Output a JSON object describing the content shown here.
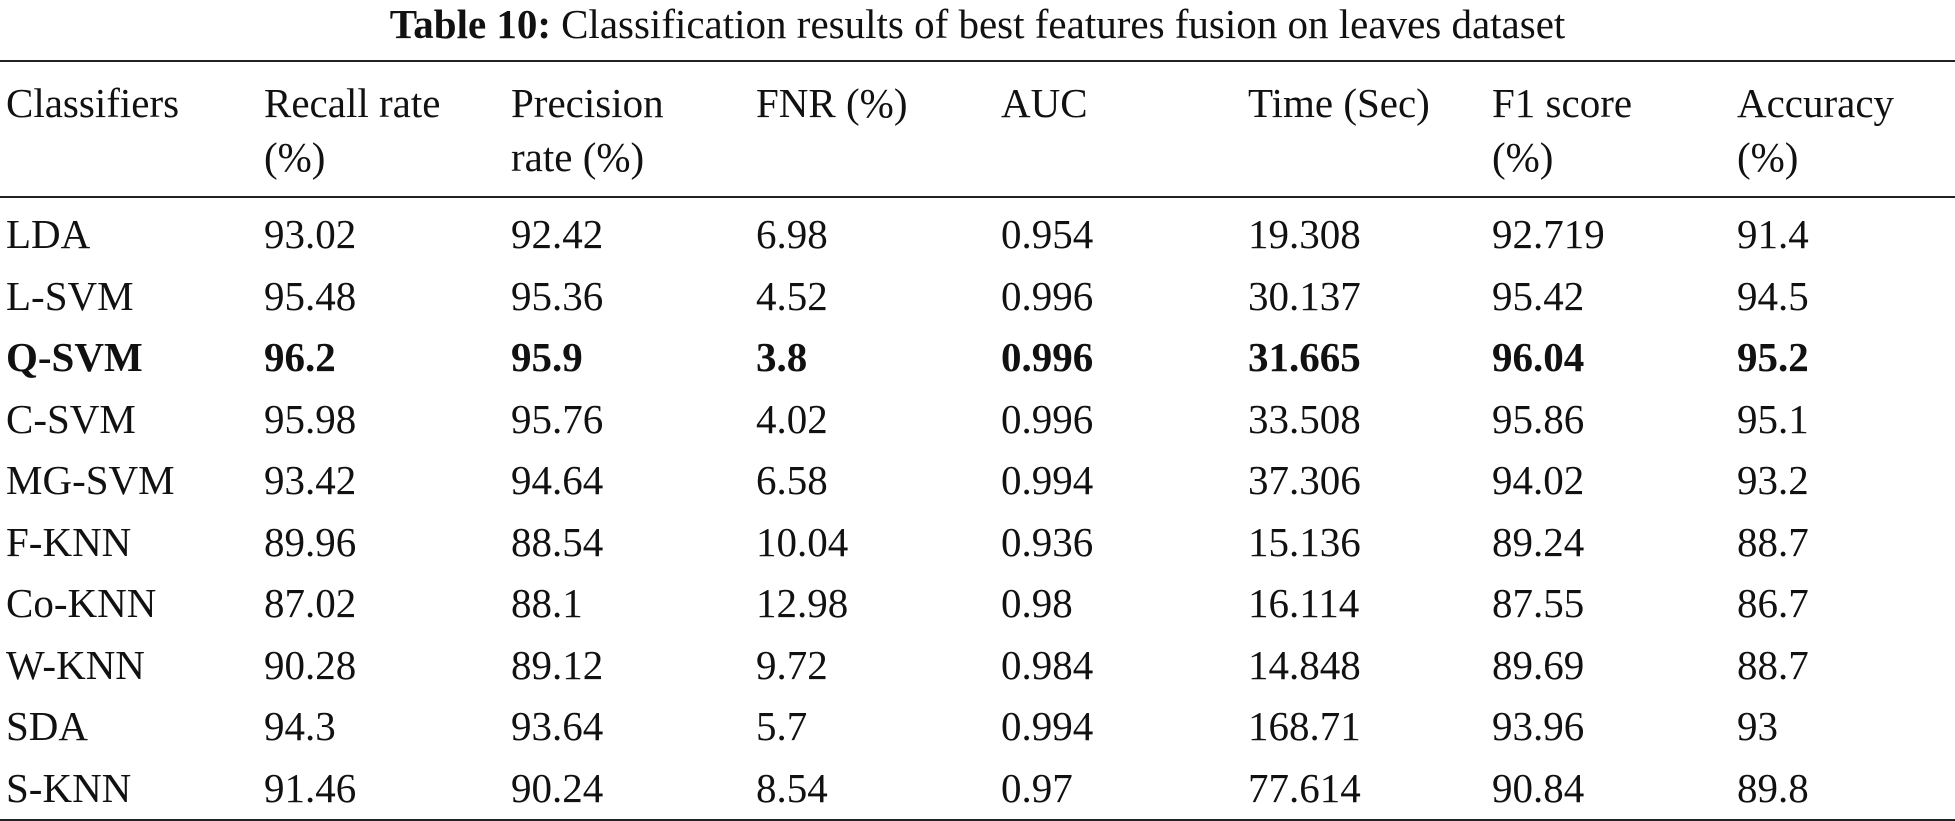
{
  "caption": {
    "label": "Table 10:",
    "text": "Classification results of best features fusion on leaves dataset"
  },
  "table": {
    "headers": [
      [
        "Classifiers"
      ],
      [
        "Recall rate",
        "(%)"
      ],
      [
        "Precision",
        "rate (%)"
      ],
      [
        "FNR (%)"
      ],
      [
        "AUC"
      ],
      [
        "Time (Sec)"
      ],
      [
        "F1 score",
        "(%)"
      ],
      [
        "Accuracy",
        "(%)"
      ]
    ],
    "rows": [
      {
        "bold": false,
        "cells": [
          "LDA",
          "93.02",
          "92.42",
          "6.98",
          "0.954",
          "19.308",
          "92.719",
          "91.4"
        ]
      },
      {
        "bold": false,
        "cells": [
          "L-SVM",
          "95.48",
          "95.36",
          "4.52",
          "0.996",
          "30.137",
          "95.42",
          "94.5"
        ]
      },
      {
        "bold": true,
        "cells": [
          "Q-SVM",
          "96.2",
          "95.9",
          "3.8",
          "0.996",
          "31.665",
          "96.04",
          "95.2"
        ]
      },
      {
        "bold": false,
        "cells": [
          "C-SVM",
          "95.98",
          "95.76",
          "4.02",
          "0.996",
          "33.508",
          "95.86",
          "95.1"
        ]
      },
      {
        "bold": false,
        "cells": [
          "MG-SVM",
          "93.42",
          "94.64",
          "6.58",
          "0.994",
          "37.306",
          "94.02",
          "93.2"
        ]
      },
      {
        "bold": false,
        "cells": [
          "F-KNN",
          "89.96",
          "88.54",
          "10.04",
          "0.936",
          "15.136",
          "89.24",
          "88.7"
        ]
      },
      {
        "bold": false,
        "cells": [
          "Co-KNN",
          "87.02",
          "88.1",
          "12.98",
          "0.98",
          "16.114",
          "87.55",
          "86.7"
        ]
      },
      {
        "bold": false,
        "cells": [
          "W-KNN",
          "90.28",
          "89.12",
          "9.72",
          "0.984",
          "14.848",
          "89.69",
          "88.7"
        ]
      },
      {
        "bold": false,
        "cells": [
          "SDA",
          "94.3",
          "93.64",
          "5.7",
          "0.994",
          "168.71",
          "93.96",
          "93"
        ]
      },
      {
        "bold": false,
        "cells": [
          "S-KNN",
          "91.46",
          "90.24",
          "8.54",
          "0.97",
          "77.614",
          "90.84",
          "89.8"
        ]
      }
    ]
  }
}
